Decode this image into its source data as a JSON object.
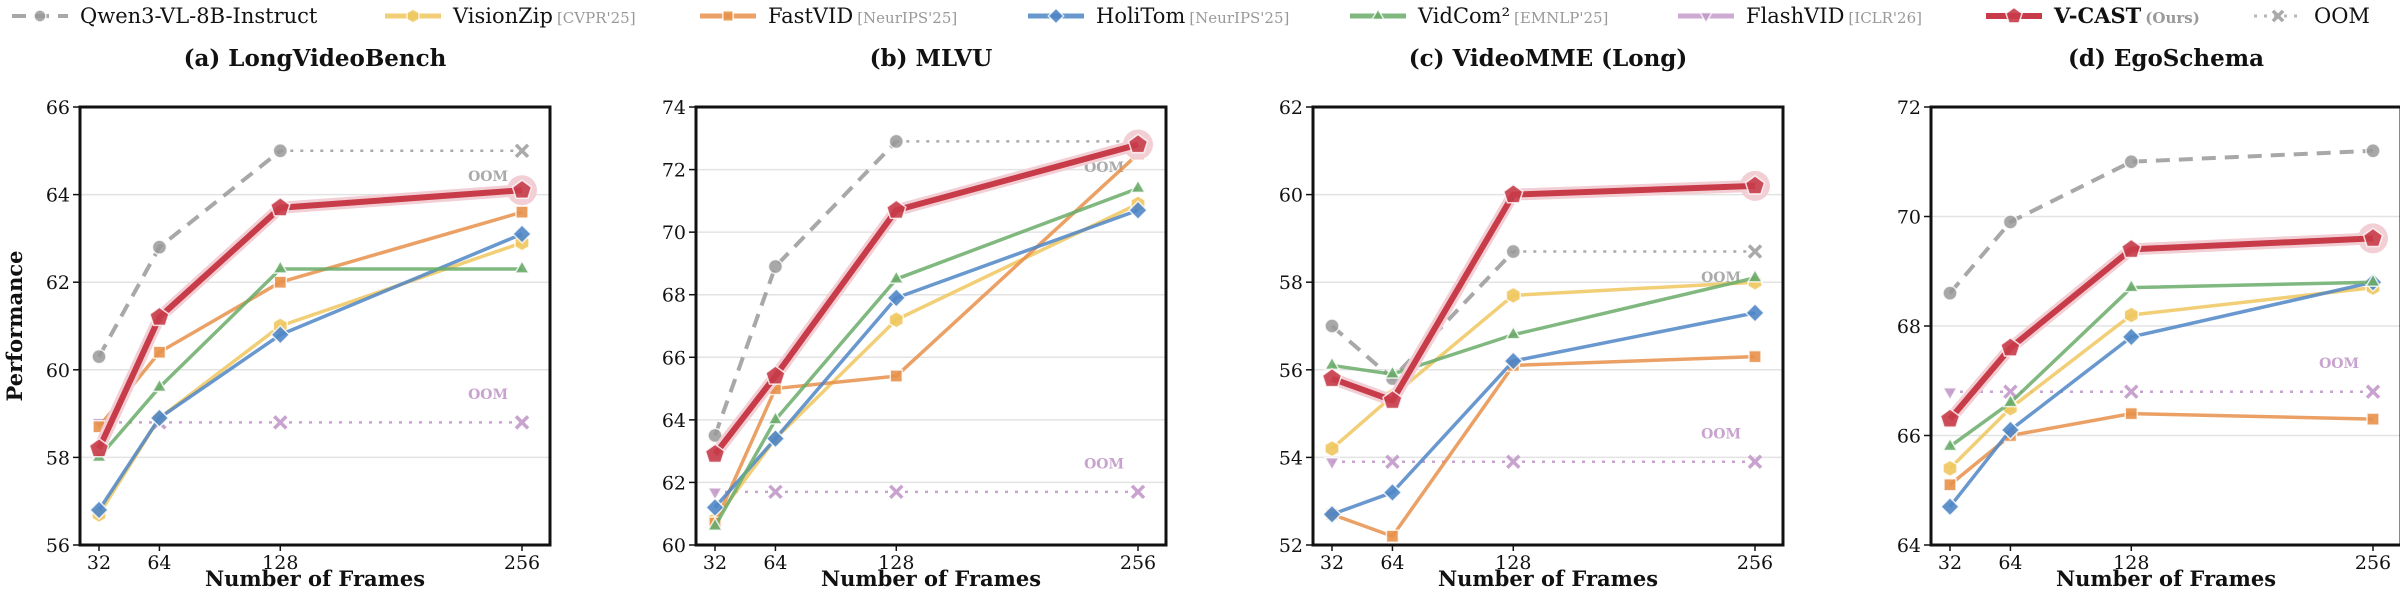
{
  "legend": [
    {
      "key": "qwen",
      "name": "Qwen3-VL-8B-Instruct",
      "venue": "",
      "color": "#999999",
      "marker": "circle",
      "dash": "dashed"
    },
    {
      "key": "visionzip",
      "name": "VisionZip",
      "venue": "[CVPR'25]",
      "color": "#f0c75e",
      "marker": "hexagon",
      "dash": "solid"
    },
    {
      "key": "fastvid",
      "name": "FastVID",
      "venue": "[NeurIPS'25]",
      "color": "#e8914a",
      "marker": "square",
      "dash": "solid"
    },
    {
      "key": "holitom",
      "name": "HoliTom",
      "venue": "[NeurIPS'25]",
      "color": "#4f86c6",
      "marker": "diamond",
      "dash": "solid"
    },
    {
      "key": "vidcom2",
      "name": "VidCom²",
      "venue": "[EMNLP'25]",
      "color": "#6aab6a",
      "marker": "triangle-up",
      "dash": "solid"
    },
    {
      "key": "flashvid",
      "name": "FlashVID",
      "venue": "[ICLR'26]",
      "color": "#c39bc9",
      "marker": "triangle-down",
      "dash": "solid"
    },
    {
      "key": "vcast",
      "name": "V-CAST",
      "venue": "(Ours)",
      "color": "#c83c4a",
      "marker": "pentagon",
      "dash": "solid",
      "bold": true
    },
    {
      "key": "oom",
      "name": "OOM",
      "venue": "",
      "color": "#aaaaaa",
      "marker": "x",
      "dash": "dotted"
    }
  ],
  "oom_label": "OOM",
  "chart_data": [
    {
      "type": "line",
      "title": "(a) LongVideoBench",
      "xlabel": "Number of Frames",
      "ylabel": "Performance",
      "x": [
        32,
        64,
        128,
        256
      ],
      "ylim": [
        56,
        66
      ],
      "yticks": [
        56,
        58,
        60,
        62,
        64,
        66
      ],
      "grid": true,
      "series": [
        {
          "key": "flashvid",
          "values": [
            58.8,
            null,
            null,
            null
          ],
          "oom_value": 58.8
        },
        {
          "key": "qwen",
          "values": [
            60.3,
            62.8,
            65.0,
            null
          ],
          "oom_value": 65.0
        },
        {
          "key": "visionzip",
          "values": [
            56.7,
            58.9,
            61.0,
            62.9
          ]
        },
        {
          "key": "fastvid",
          "values": [
            58.7,
            60.4,
            62.0,
            63.6
          ]
        },
        {
          "key": "holitom",
          "values": [
            56.8,
            58.9,
            60.8,
            63.1
          ]
        },
        {
          "key": "vidcom2",
          "values": [
            58.0,
            59.6,
            62.3,
            62.3
          ]
        },
        {
          "key": "vcast",
          "values": [
            58.2,
            61.2,
            63.7,
            64.1
          ]
        }
      ]
    },
    {
      "type": "line",
      "title": "(b) MLVU",
      "xlabel": "Number of Frames",
      "ylabel": "",
      "x": [
        32,
        64,
        128,
        256
      ],
      "ylim": [
        60,
        74
      ],
      "yticks": [
        60,
        62,
        64,
        66,
        68,
        70,
        72,
        74
      ],
      "grid": true,
      "series": [
        {
          "key": "flashvid",
          "values": [
            61.7,
            null,
            null,
            null
          ],
          "oom_value": 61.7
        },
        {
          "key": "qwen",
          "values": [
            63.5,
            68.9,
            72.9,
            null
          ],
          "oom_value": 72.9
        },
        {
          "key": "visionzip",
          "values": [
            60.8,
            63.4,
            67.2,
            70.9
          ]
        },
        {
          "key": "fastvid",
          "values": [
            60.7,
            65.0,
            65.4,
            72.5
          ]
        },
        {
          "key": "holitom",
          "values": [
            61.2,
            63.4,
            67.9,
            70.7
          ]
        },
        {
          "key": "vidcom2",
          "values": [
            60.6,
            64.0,
            68.5,
            71.4
          ]
        },
        {
          "key": "vcast",
          "values": [
            62.9,
            65.4,
            70.7,
            72.8
          ]
        }
      ]
    },
    {
      "type": "line",
      "title": "(c) VideoMME (Long)",
      "xlabel": "Number of Frames",
      "ylabel": "",
      "x": [
        32,
        64,
        128,
        256
      ],
      "ylim": [
        52,
        62
      ],
      "yticks": [
        52,
        54,
        56,
        58,
        60,
        62
      ],
      "grid": true,
      "series": [
        {
          "key": "flashvid",
          "values": [
            53.9,
            null,
            null,
            null
          ],
          "oom_value": 53.9
        },
        {
          "key": "qwen",
          "values": [
            57.0,
            55.8,
            58.7,
            null
          ],
          "oom_value": 58.7
        },
        {
          "key": "visionzip",
          "values": [
            54.2,
            55.4,
            57.7,
            58.0
          ]
        },
        {
          "key": "fastvid",
          "values": [
            52.7,
            52.2,
            56.1,
            56.3
          ]
        },
        {
          "key": "holitom",
          "values": [
            52.7,
            53.2,
            56.2,
            57.3
          ]
        },
        {
          "key": "vidcom2",
          "values": [
            56.1,
            55.9,
            56.8,
            58.1
          ]
        },
        {
          "key": "vcast",
          "values": [
            55.8,
            55.3,
            60.0,
            60.2
          ]
        }
      ]
    },
    {
      "type": "line",
      "title": "(d) EgoSchema",
      "xlabel": "Number of Frames",
      "ylabel": "",
      "x": [
        32,
        64,
        128,
        256
      ],
      "ylim": [
        64,
        72
      ],
      "yticks": [
        64,
        66,
        68,
        70,
        72
      ],
      "grid": true,
      "series": [
        {
          "key": "flashvid",
          "values": [
            66.8,
            null,
            null,
            null
          ],
          "oom_value": 66.8
        },
        {
          "key": "qwen",
          "values": [
            68.6,
            69.9,
            71.0,
            71.2
          ]
        },
        {
          "key": "visionzip",
          "values": [
            65.4,
            66.5,
            68.2,
            68.7
          ]
        },
        {
          "key": "fastvid",
          "values": [
            65.1,
            66.0,
            66.4,
            66.3
          ]
        },
        {
          "key": "holitom",
          "values": [
            64.7,
            66.1,
            67.8,
            68.8
          ]
        },
        {
          "key": "vidcom2",
          "values": [
            65.8,
            66.6,
            68.7,
            68.8
          ]
        },
        {
          "key": "vcast",
          "values": [
            66.3,
            67.6,
            69.4,
            69.6
          ]
        }
      ]
    }
  ]
}
